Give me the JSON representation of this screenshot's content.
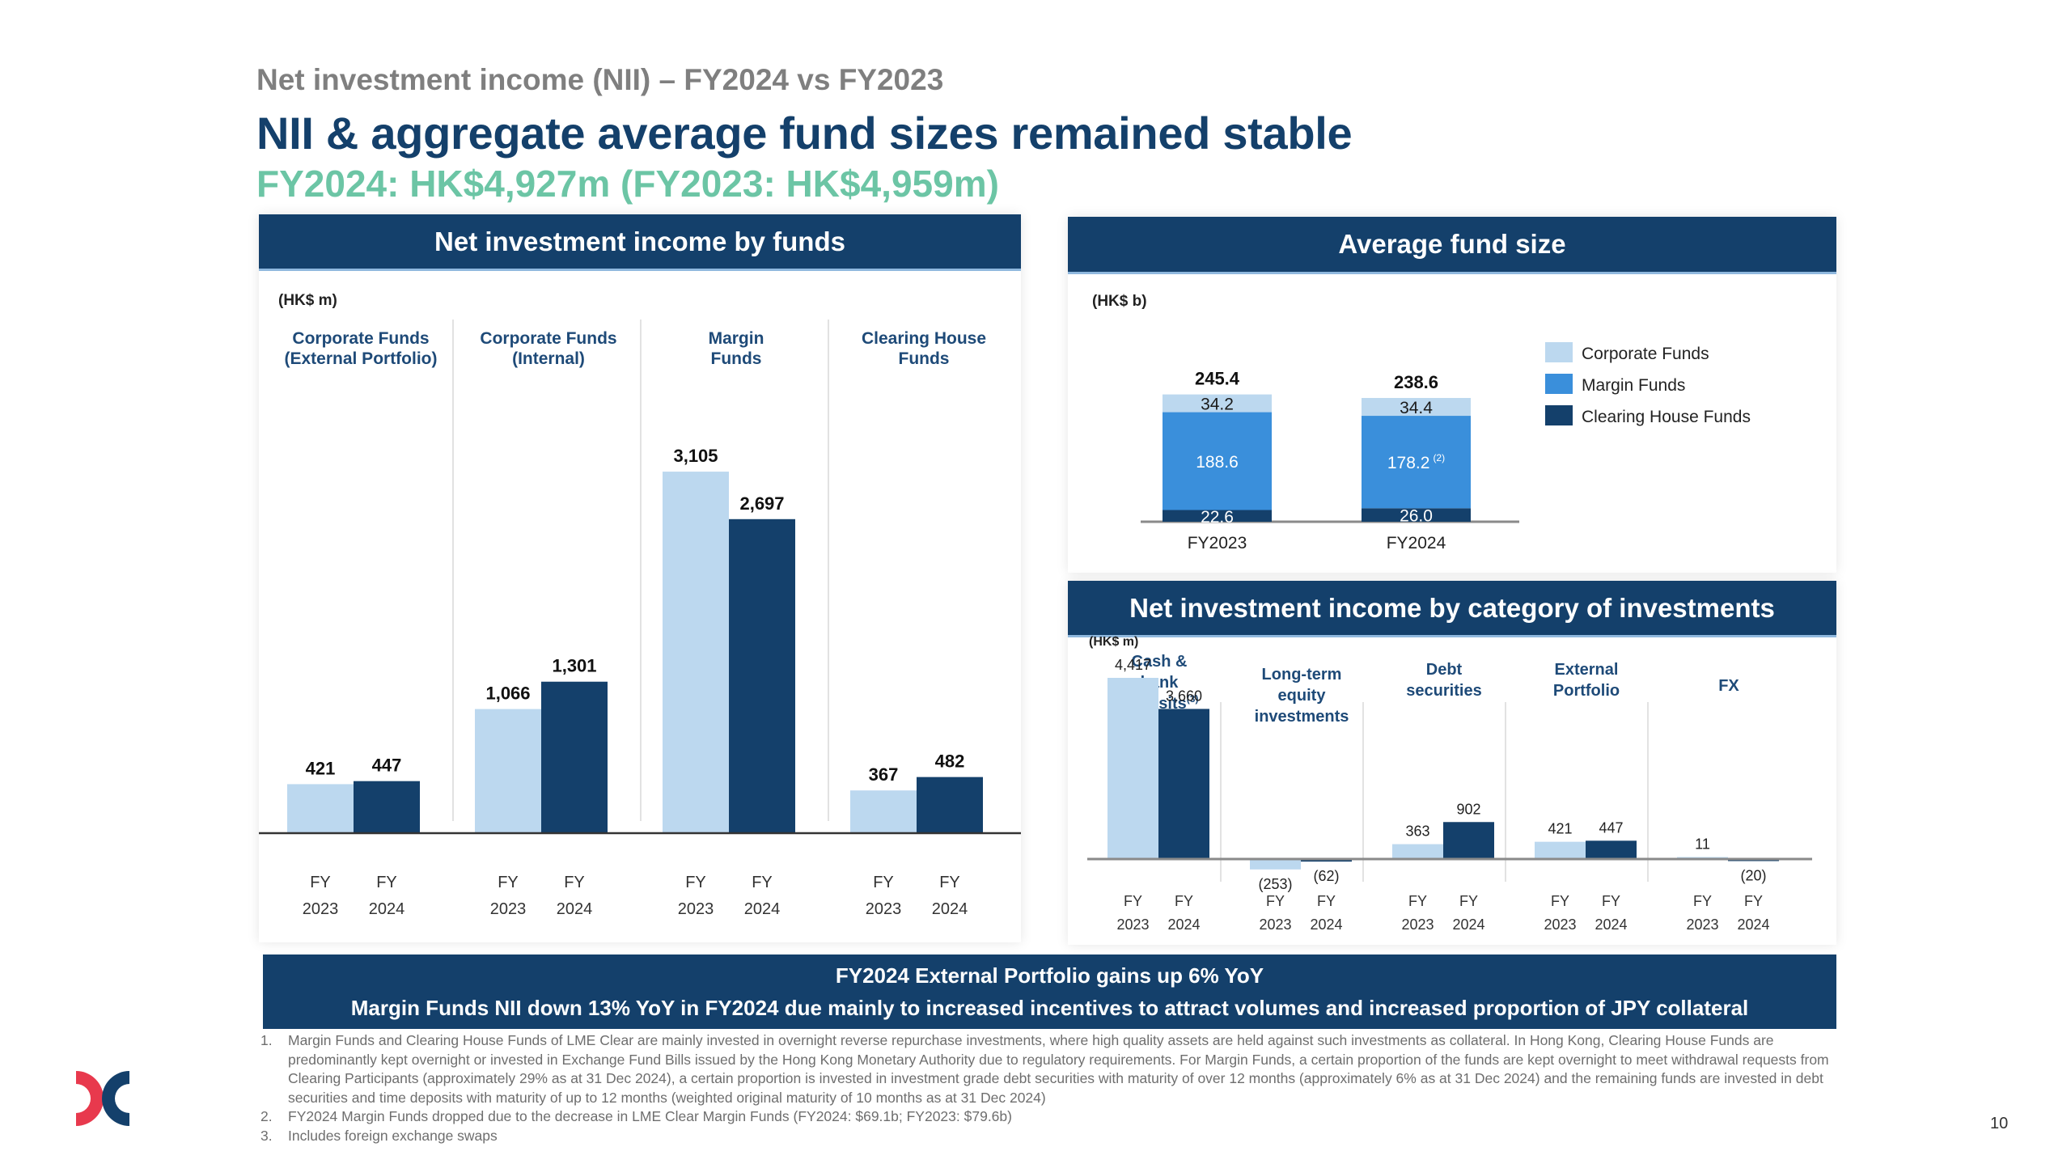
{
  "header": {
    "section_title": "Net investment income (NII) – FY2024 vs FY2023",
    "main_title": "NII & aggregate average fund sizes remained stable",
    "subtitle": "FY2024: HK$4,927m (FY2023: HK$4,959m)"
  },
  "colors": {
    "navy": "#14406b",
    "light_blue": "#bcd8ef",
    "mid_blue": "#3a8fdb",
    "teal": "#6cc5a5",
    "grey_text": "#7f7f7f",
    "logo_red": "#e8394d",
    "logo_navy": "#14406b"
  },
  "chart_data": [
    {
      "id": "nii-by-funds",
      "type": "bar",
      "title": "Net investment income by funds",
      "unit_label": "(HK$ m)",
      "categories": [
        "Corporate Funds (External Portfolio)",
        "Corporate Funds (Internal)",
        "Margin Funds",
        "Clearing House Funds"
      ],
      "category_labels": [
        [
          "Corporate Funds",
          "(External Portfolio)"
        ],
        [
          "Corporate Funds",
          "(Internal)"
        ],
        [
          "Margin",
          "Funds"
        ],
        [
          "Clearing House",
          "Funds"
        ]
      ],
      "x_tick_labels": [
        [
          "FY",
          "2023"
        ],
        [
          "FY",
          "2024"
        ]
      ],
      "series": [
        {
          "name": "FY2023",
          "color": "#bcd8ef",
          "values": [
            421,
            1066,
            3105,
            367
          ],
          "labels": [
            "421",
            "1,066",
            "3,105",
            "367"
          ]
        },
        {
          "name": "FY2024",
          "color": "#14406b",
          "values": [
            447,
            1301,
            2697,
            482
          ],
          "labels": [
            "447",
            "1,301",
            "2,697",
            "482"
          ]
        }
      ],
      "ylim": [
        0,
        3300
      ],
      "grid": false,
      "legend": "none"
    },
    {
      "id": "average-fund-size",
      "type": "bar",
      "stacked": true,
      "title": "Average fund size",
      "unit_label": "(HK$ b)",
      "categories": [
        "FY2023",
        "FY2024"
      ],
      "series": [
        {
          "name": "Clearing House Funds",
          "color": "#14406b",
          "values": [
            22.6,
            26.0
          ],
          "labels": [
            "22.6",
            "26.0"
          ]
        },
        {
          "name": "Margin Funds",
          "color": "#3a8fdb",
          "values": [
            188.6,
            178.2
          ],
          "labels": [
            "188.6",
            "178.2"
          ],
          "label_footnotes": [
            "",
            "(2)"
          ]
        },
        {
          "name": "Corporate Funds",
          "color": "#bcd8ef",
          "values": [
            34.2,
            34.4
          ],
          "labels": [
            "34.2",
            "34.4"
          ]
        }
      ],
      "totals": [
        245.4,
        238.6
      ],
      "total_labels": [
        "245.4",
        "238.6"
      ],
      "legend_order": [
        "Corporate Funds",
        "Margin Funds",
        "Clearing House Funds"
      ],
      "legend": "right",
      "ylim": [
        0,
        260
      ],
      "grid": false
    },
    {
      "id": "nii-by-category",
      "type": "bar",
      "title": "Net investment income by category of investments",
      "unit_label": "(HK$ m)",
      "categories": [
        "Cash & bank deposits",
        "Long-term equity investments",
        "Debt securities",
        "External Portfolio",
        "FX"
      ],
      "category_labels": [
        [
          "Cash &",
          "bank",
          "deposits"
        ],
        [
          "Long-term",
          "equity",
          "investments"
        ],
        [
          "Debt",
          "securities"
        ],
        [
          "External",
          "Portfolio"
        ],
        [
          "FX"
        ]
      ],
      "category_footnotes": [
        "(3)",
        "",
        "",
        "",
        ""
      ],
      "x_tick_labels": [
        [
          "FY",
          "2023"
        ],
        [
          "FY",
          "2024"
        ]
      ],
      "series": [
        {
          "name": "FY2023",
          "color": "#bcd8ef",
          "values": [
            4417,
            -253,
            363,
            421,
            11
          ],
          "labels": [
            "4,417",
            "(253)",
            "363",
            "421",
            "11"
          ]
        },
        {
          "name": "FY2024",
          "color": "#14406b",
          "values": [
            3660,
            -62,
            902,
            447,
            -20
          ],
          "labels": [
            "3,660",
            "(62)",
            "902",
            "447",
            "(20)"
          ]
        }
      ],
      "ylim": [
        -400,
        4800
      ],
      "grid": false,
      "legend": "none"
    }
  ],
  "banner": {
    "line1": "FY2024 External Portfolio gains up 6% YoY",
    "line2": "Margin Funds NII down 13% YoY in FY2024 due mainly to increased incentives to attract volumes and increased proportion of JPY collateral"
  },
  "footnotes": [
    {
      "num": "1.",
      "text": "Margin Funds and Clearing House Funds of LME Clear are mainly invested in overnight reverse repurchase investments, where high quality assets are held against such investments as collateral. In Hong Kong, Clearing House Funds are predominantly kept overnight or invested in Exchange Fund Bills issued by the Hong Kong Monetary Authority due to regulatory requirements. For Margin Funds, a certain proportion of the funds are kept overnight to meet withdrawal requests from Clearing Participants (approximately 29% as at 31 Dec 2024), a certain proportion is invested in investment grade debt securities with maturity of over 12 months (approximately 6% as at 31 Dec 2024) and the remaining funds are invested in debt securities and time deposits with maturity of up to 12 months (weighted original maturity of 10 months as at 31 Dec 2024)"
    },
    {
      "num": "2.",
      "text": "FY2024 Margin Funds dropped due to the decrease in LME Clear Margin Funds (FY2024: $69.1b; FY2023: $79.6b)"
    },
    {
      "num": "3.",
      "text": "Includes foreign exchange swaps"
    }
  ],
  "page_number": "10",
  "logo": {
    "name": "HKEX logo"
  }
}
